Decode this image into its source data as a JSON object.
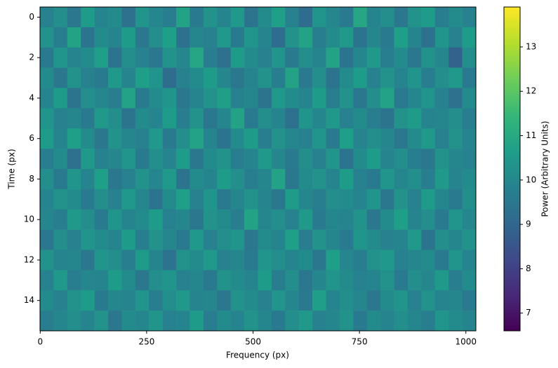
{
  "chart_data": {
    "type": "heatmap",
    "x_label": "Frequency (px)",
    "y_label": "Time (px)",
    "colorbar_label": "Power (Arbitrary Units)",
    "colormap": "viridis",
    "xlim": [
      -0.5,
      1023.5
    ],
    "ylim": [
      15.5,
      -0.5
    ],
    "xticks": [
      0,
      250,
      500,
      750,
      1000
    ],
    "yticks": [
      0,
      2,
      4,
      6,
      8,
      10,
      12,
      14
    ],
    "clim": [
      6.6,
      13.9
    ],
    "cticks": [
      7,
      8,
      9,
      10,
      11,
      12,
      13
    ],
    "values": [
      [
        9.8,
        10.2,
        9.5,
        10.6,
        9.9,
        10.1,
        9.3,
        10.4,
        10.0,
        9.7,
        10.8,
        9.6,
        10.3,
        9.9,
        10.5,
        9.4,
        10.1,
        10.7,
        9.8,
        9.2,
        10.4,
        10.0,
        9.6,
        10.9,
        9.9,
        10.2,
        9.5,
        10.3,
        10.6,
        9.7,
        10.1,
        9.8
      ],
      [
        10.3,
        9.7,
        10.8,
        9.4,
        10.1,
        9.9,
        10.6,
        9.5,
        10.2,
        10.7,
        9.3,
        10.0,
        9.8,
        10.5,
        9.6,
        10.4,
        9.9,
        9.2,
        10.3,
        10.8,
        9.7,
        10.1,
        10.5,
        9.4,
        10.0,
        9.6,
        10.7,
        9.9,
        9.3,
        10.4,
        9.8,
        10.6
      ],
      [
        9.6,
        10.4,
        9.9,
        10.1,
        10.7,
        9.4,
        10.2,
        9.8,
        9.5,
        10.3,
        10.0,
        10.9,
        9.7,
        9.3,
        10.6,
        10.1,
        9.8,
        10.4,
        9.6,
        10.2,
        9.9,
        10.8,
        9.4,
        10.0,
        10.5,
        9.7,
        10.1,
        9.5,
        10.3,
        10.0,
        8.9,
        10.2
      ],
      [
        10.1,
        9.5,
        10.3,
        9.8,
        9.6,
        10.5,
        9.9,
        10.7,
        10.4,
        9.2,
        9.8,
        10.1,
        10.6,
        10.0,
        9.5,
        9.9,
        10.3,
        9.7,
        10.8,
        9.6,
        10.2,
        9.4,
        10.1,
        10.6,
        9.8,
        10.3,
        9.9,
        10.4,
        9.7,
        10.2,
        10.5,
        9.6
      ],
      [
        9.9,
        10.6,
        9.4,
        10.2,
        10.0,
        9.7,
        10.8,
        9.6,
        10.1,
        10.4,
        9.5,
        9.9,
        10.3,
        10.7,
        9.8,
        10.0,
        9.4,
        10.5,
        10.1,
        9.9,
        10.6,
        9.7,
        10.3,
        9.5,
        10.2,
        10.8,
        9.6,
        10.0,
        10.4,
        9.8,
        9.3,
        10.1
      ],
      [
        10.4,
        9.8,
        10.0,
        9.6,
        10.5,
        10.2,
        9.4,
        10.1,
        9.9,
        10.6,
        9.7,
        10.3,
        9.5,
        10.0,
        10.8,
        9.6,
        10.2,
        9.9,
        9.3,
        10.4,
        10.0,
        10.5,
        9.8,
        10.1,
        9.7,
        9.4,
        10.3,
        10.6,
        9.9,
        10.0,
        10.2,
        9.7
      ],
      [
        10.6,
        9.9,
        10.7,
        10.1,
        9.5,
        10.3,
        10.0,
        9.8,
        10.5,
        9.6,
        10.2,
        10.8,
        9.9,
        9.4,
        10.1,
        10.6,
        9.7,
        10.3,
        10.0,
        9.8,
        10.4,
        9.6,
        10.7,
        9.9,
        10.2,
        10.0,
        9.5,
        10.1,
        10.5,
        9.8,
        10.3,
        9.9
      ],
      [
        9.7,
        10.1,
        9.3,
        10.5,
        9.8,
        10.0,
        10.4,
        9.6,
        10.2,
        9.9,
        10.6,
        9.5,
        10.1,
        10.3,
        9.7,
        9.9,
        10.5,
        10.0,
        9.6,
        10.2,
        9.8,
        10.4,
        9.4,
        10.1,
        10.6,
        9.9,
        10.2,
        9.7,
        9.5,
        10.3,
        10.0,
        9.8
      ],
      [
        10.2,
        9.6,
        10.4,
        9.9,
        10.7,
        9.5,
        9.8,
        10.3,
        10.0,
        10.5,
        9.4,
        10.1,
        9.9,
        10.6,
        10.2,
        9.7,
        10.0,
        10.8,
        9.5,
        10.1,
        10.3,
        9.9,
        10.6,
        9.8,
        9.6,
        10.4,
        10.0,
        10.2,
        9.7,
        10.5,
        9.9,
        10.1
      ],
      [
        9.9,
        10.3,
        10.1,
        9.6,
        10.2,
        9.8,
        10.5,
        10.0,
        9.4,
        10.1,
        10.7,
        9.8,
        10.4,
        9.6,
        10.0,
        10.3,
        9.9,
        9.5,
        10.6,
        10.0,
        9.7,
        10.2,
        10.1,
        9.9,
        10.4,
        9.5,
        10.3,
        9.8,
        10.6,
        10.0,
        9.6,
        10.2
      ],
      [
        10.0,
        9.7,
        10.5,
        10.2,
        9.6,
        10.4,
        9.9,
        10.1,
        10.6,
        9.8,
        10.0,
        9.5,
        10.3,
        10.1,
        9.7,
        10.8,
        10.0,
        10.2,
        9.8,
        10.5,
        9.6,
        10.0,
        9.9,
        10.3,
        9.5,
        10.1,
        10.7,
        9.9,
        10.2,
        9.6,
        10.4,
        10.0
      ],
      [
        9.5,
        10.2,
        9.8,
        10.4,
        10.1,
        9.9,
        10.6,
        9.7,
        10.3,
        10.0,
        9.6,
        10.5,
        9.8,
        10.2,
        10.4,
        9.5,
        10.1,
        9.9,
        10.7,
        9.7,
        10.3,
        10.0,
        9.6,
        10.4,
        10.1,
        9.8,
        9.9,
        10.5,
        9.4,
        10.2,
        10.0,
        10.3
      ],
      [
        10.3,
        9.9,
        10.0,
        9.5,
        10.4,
        10.2,
        9.7,
        10.6,
        9.9,
        9.4,
        10.3,
        10.1,
        10.5,
        9.8,
        10.0,
        9.6,
        10.4,
        10.2,
        9.9,
        10.1,
        9.5,
        10.7,
        10.0,
        9.7,
        10.3,
        10.5,
        9.8,
        10.0,
        10.1,
        9.6,
        10.4,
        9.9
      ],
      [
        9.8,
        10.5,
        9.7,
        10.0,
        9.9,
        10.6,
        10.1,
        9.5,
        10.2,
        10.4,
        9.8,
        10.0,
        9.6,
        10.3,
        10.1,
        9.9,
        10.6,
        9.7,
        10.2,
        9.5,
        10.0,
        10.4,
        10.1,
        9.8,
        9.9,
        10.3,
        9.6,
        10.2,
        10.0,
        10.5,
        9.7,
        10.1
      ],
      [
        10.1,
        9.8,
        10.3,
        10.6,
        9.6,
        10.0,
        9.9,
        10.4,
        9.7,
        10.2,
        10.5,
        9.9,
        10.0,
        9.5,
        10.3,
        10.1,
        9.8,
        10.4,
        10.0,
        9.6,
        10.7,
        9.9,
        10.2,
        10.0,
        9.5,
        10.1,
        10.4,
        9.8,
        10.3,
        9.9,
        10.0,
        9.6
      ],
      [
        9.7,
        10.0,
        10.2,
        9.9,
        10.3,
        9.5,
        10.1,
        10.0,
        10.4,
        9.8,
        9.9,
        10.6,
        9.7,
        10.1,
        9.9,
        10.3,
        10.0,
        9.6,
        10.2,
        10.5,
        9.8,
        10.0,
        10.3,
        9.6,
        10.1,
        9.9,
        10.2,
        10.0,
        9.7,
        10.4,
        10.1,
        9.9
      ]
    ]
  }
}
